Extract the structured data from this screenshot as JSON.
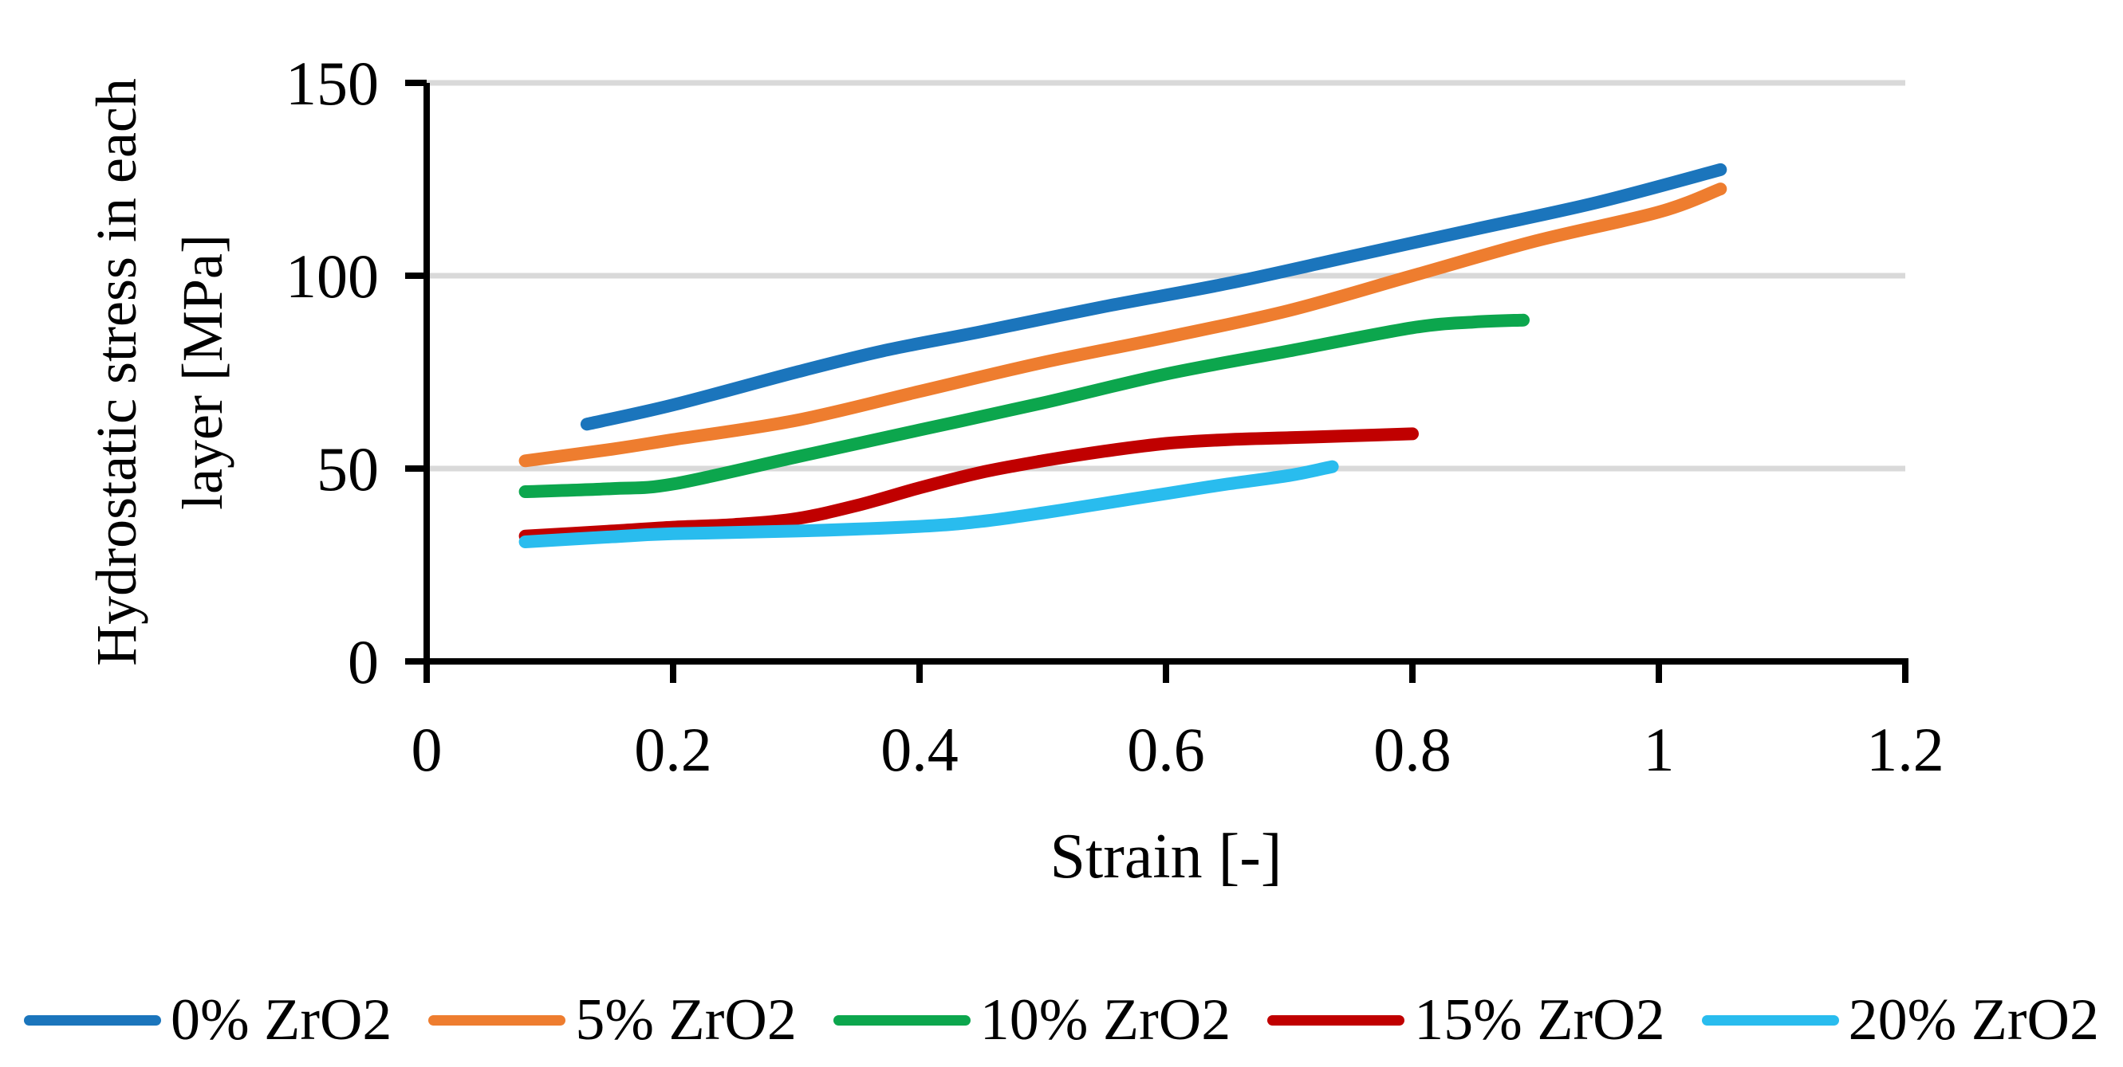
{
  "figure": {
    "background": "#FFFFFF",
    "gridline_color": "#D9D9D9",
    "axis_color": "#000000"
  },
  "chart_data": {
    "type": "line",
    "title": "",
    "xlabel": "Strain [-]",
    "ylabel": "Hydrostatic stress in each layer [MPa]",
    "ylabel_lines": [
      "Hydrostatic stress in each",
      "layer [MPa]"
    ],
    "xlim": [
      0,
      1.2
    ],
    "ylim": [
      0,
      150
    ],
    "x_tick_values": [
      0,
      0.2,
      0.4,
      0.6,
      0.8,
      1,
      1.2
    ],
    "x_tick_labels": [
      "0",
      "0.2",
      "0.4",
      "0.6",
      "0.8",
      "1",
      "1.2"
    ],
    "y_tick_values": [
      0,
      50,
      100,
      150
    ],
    "y_tick_labels": [
      "0",
      "50",
      "100",
      "150"
    ],
    "grid": "horizontal",
    "legend_position": "bottom",
    "series": [
      {
        "name": "0% ZrO2",
        "color": "#1B75BC",
        "points": [
          [
            0.13,
            61.5
          ],
          [
            0.2,
            66.5
          ],
          [
            0.3,
            75
          ],
          [
            0.37,
            80.5
          ],
          [
            0.45,
            85.5
          ],
          [
            0.55,
            92
          ],
          [
            0.65,
            98
          ],
          [
            0.75,
            105
          ],
          [
            0.85,
            112
          ],
          [
            0.95,
            119
          ],
          [
            1.05,
            127.5
          ]
        ]
      },
      {
        "name": "5% ZrO2",
        "color": "#EE7D2F",
        "points": [
          [
            0.08,
            52
          ],
          [
            0.15,
            55
          ],
          [
            0.2,
            57.5
          ],
          [
            0.3,
            62.5
          ],
          [
            0.4,
            70
          ],
          [
            0.5,
            77.5
          ],
          [
            0.6,
            84
          ],
          [
            0.7,
            91
          ],
          [
            0.8,
            100
          ],
          [
            0.9,
            109
          ],
          [
            1.0,
            116.5
          ],
          [
            1.05,
            122.5
          ]
        ]
      },
      {
        "name": "10% ZrO2",
        "color": "#0CA64D",
        "points": [
          [
            0.08,
            44
          ],
          [
            0.15,
            44.8
          ],
          [
            0.2,
            46
          ],
          [
            0.3,
            53
          ],
          [
            0.4,
            60
          ],
          [
            0.5,
            67
          ],
          [
            0.6,
            74.5
          ],
          [
            0.7,
            80.5
          ],
          [
            0.8,
            86.5
          ],
          [
            0.85,
            88
          ],
          [
            0.89,
            88.5
          ]
        ]
      },
      {
        "name": "15% ZrO2",
        "color": "#C00000",
        "points": [
          [
            0.08,
            32.5
          ],
          [
            0.15,
            33.8
          ],
          [
            0.2,
            34.8
          ],
          [
            0.25,
            35.5
          ],
          [
            0.3,
            37
          ],
          [
            0.35,
            40.5
          ],
          [
            0.4,
            45
          ],
          [
            0.45,
            49
          ],
          [
            0.5,
            52
          ],
          [
            0.55,
            54.5
          ],
          [
            0.6,
            56.5
          ],
          [
            0.65,
            57.5
          ],
          [
            0.7,
            58
          ],
          [
            0.75,
            58.5
          ],
          [
            0.8,
            59
          ]
        ]
      },
      {
        "name": "20% ZrO2",
        "color": "#29BCEE",
        "points": [
          [
            0.08,
            31
          ],
          [
            0.15,
            32.3
          ],
          [
            0.2,
            33.1
          ],
          [
            0.3,
            33.8
          ],
          [
            0.4,
            35
          ],
          [
            0.45,
            36.3
          ],
          [
            0.5,
            38.5
          ],
          [
            0.55,
            41
          ],
          [
            0.6,
            43.5
          ],
          [
            0.65,
            46
          ],
          [
            0.7,
            48.2
          ],
          [
            0.735,
            50.5
          ]
        ]
      }
    ]
  }
}
